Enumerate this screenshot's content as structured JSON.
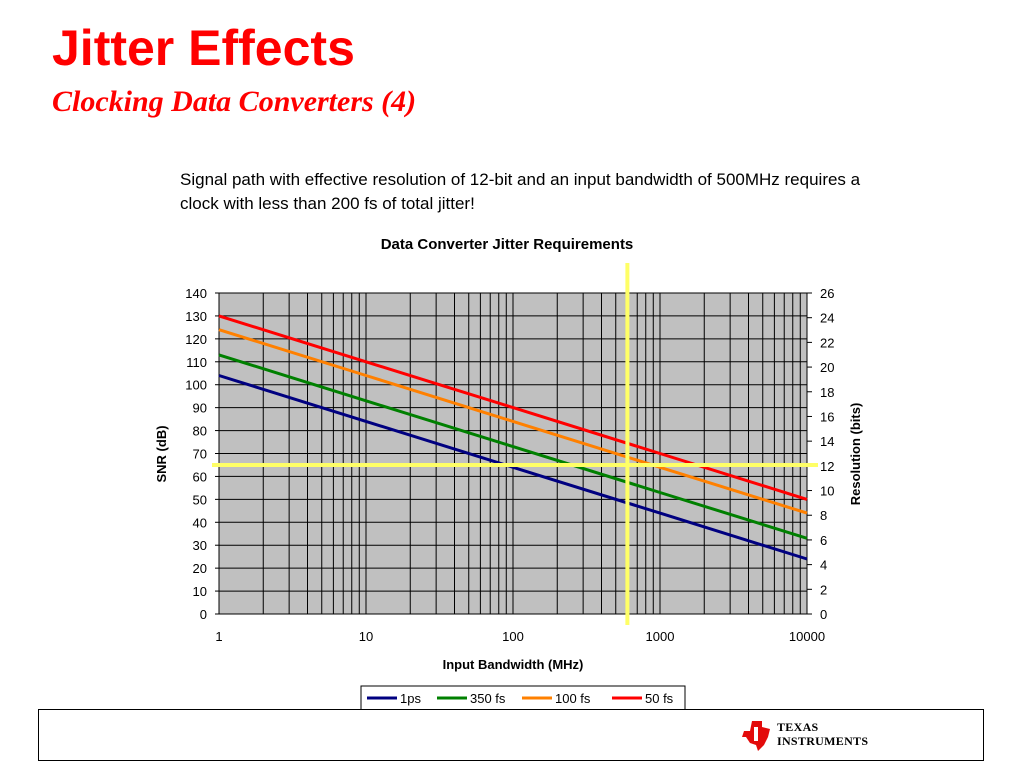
{
  "slide": {
    "title": "Jitter Effects",
    "subtitle": "Clocking Data Converters (4)",
    "description": "Signal path with effective resolution of 12-bit and an input bandwidth of 500MHz requires a clock with less than 200 fs of total jitter!"
  },
  "chart_data": {
    "type": "line",
    "title": "Data Converter Jitter Requirements",
    "xlabel": "Input Bandwidth (MHz)",
    "ylabel": "SNR (dB)",
    "y2label": "Resolution (bits)",
    "xscale": "log",
    "xlim": [
      1,
      10000
    ],
    "ylim": [
      0,
      140
    ],
    "y2lim": [
      0,
      26
    ],
    "x_ticks": [
      "1",
      "10",
      "100",
      "1000",
      "10000"
    ],
    "y_ticks": [
      "0",
      "10",
      "20",
      "30",
      "40",
      "50",
      "60",
      "70",
      "80",
      "90",
      "100",
      "110",
      "120",
      "130",
      "140"
    ],
    "y2_ticks": [
      "0",
      "2",
      "4",
      "6",
      "8",
      "10",
      "12",
      "14",
      "16",
      "18",
      "20",
      "22",
      "24",
      "26"
    ],
    "grid": true,
    "legend_position": "bottom",
    "series": [
      {
        "name": "1ps",
        "color": "#000080",
        "x": [
          1,
          10,
          100,
          1000,
          10000
        ],
        "values": [
          104,
          84,
          64,
          44,
          24
        ]
      },
      {
        "name": "350 fs",
        "color": "#008000",
        "x": [
          1,
          10,
          100,
          1000,
          10000
        ],
        "values": [
          113,
          93,
          73,
          53,
          33
        ]
      },
      {
        "name": "100 fs",
        "color": "#ff8000",
        "x": [
          1,
          10,
          100,
          1000,
          10000
        ],
        "values": [
          124,
          104,
          84,
          64,
          44
        ]
      },
      {
        "name": "50 fs",
        "color": "#ff0000",
        "x": [
          1,
          10,
          100,
          1000,
          10000
        ],
        "values": [
          130,
          110,
          90,
          70,
          50
        ]
      }
    ],
    "annotations": {
      "color": "#ffff66",
      "vertical_line_x": 600,
      "horizontal_line_y": 65
    },
    "plot_background": "#c0c0c0"
  },
  "branding": {
    "logo_line1": "TEXAS",
    "logo_line2": "INSTRUMENTS"
  }
}
